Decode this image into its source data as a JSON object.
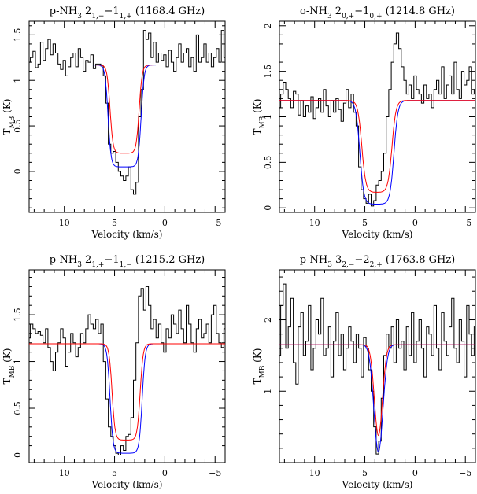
{
  "chart_data": [
    {
      "type": "line",
      "title": {
        "prefix": "p-NH",
        "sub3": "3",
        "mid1": " 2",
        "sub1": "1,−",
        "mid2": "−1",
        "sub2": "1,+",
        "freq": " (1168.4 GHz)"
      },
      "xlabel": "Velocity (km/s)",
      "ylabel": {
        "main": "T",
        "sub": "MB",
        "rest": " (K)"
      },
      "xlim": [
        13.5,
        -6
      ],
      "ylim": [
        -0.45,
        1.65
      ],
      "xticks": [
        "10",
        "5",
        "0",
        "−5"
      ],
      "xtick_values": [
        10,
        5,
        0,
        -5
      ],
      "yticks": [
        "0",
        "0.5",
        "1",
        "1.5"
      ],
      "ytick_values": [
        0,
        0.5,
        1,
        1.5
      ],
      "continuum": 1.17,
      "fit_red": {
        "depth": 0.2,
        "center": 4.0,
        "width": 1.45,
        "sharp": 0.15
      },
      "fit_blue": {
        "depth": 0.05,
        "center": 4.0,
        "width": 1.65,
        "sharp": 0.15
      },
      "observed": {
        "x0": 13.5,
        "dx": 0.25,
        "y": [
          1.2,
          1.25,
          1.32,
          1.14,
          1.18,
          1.42,
          1.22,
          1.35,
          1.45,
          1.28,
          1.4,
          1.3,
          1.18,
          1.12,
          1.22,
          1.05,
          1.15,
          1.25,
          1.3,
          1.15,
          1.35,
          1.25,
          1.1,
          1.22,
          1.2,
          1.28,
          1.13,
          1.18,
          1.18,
          1.16,
          1.05,
          0.75,
          0.3,
          0.2,
          0.22,
          0.1,
          0.0,
          -0.05,
          -0.1,
          -0.05,
          0.05,
          -0.2,
          -0.25,
          -0.12,
          0.6,
          0.9,
          1.55,
          1.45,
          1.52,
          1.25,
          1.42,
          1.2,
          1.3,
          1.22,
          1.28,
          1.15,
          1.33,
          1.2,
          1.1,
          1.25,
          1.4,
          1.2,
          1.3,
          1.35,
          1.15,
          1.25,
          1.1,
          1.5,
          1.2,
          1.25,
          1.4,
          1.2,
          1.3,
          1.15,
          1.25,
          1.35,
          1.2,
          1.55,
          1.25,
          1.1
        ]
      }
    },
    {
      "type": "line",
      "title": {
        "prefix": "o-NH",
        "sub3": "3",
        "mid1": " 2",
        "sub1": "0,+",
        "mid2": "−1",
        "sub2": "0,+",
        "freq": " (1214.8 GHz)"
      },
      "xlabel": "Velocity (km/s)",
      "ylabel": {
        "main": "T",
        "sub": "MB",
        "rest": " (K)"
      },
      "xlim": [
        13.5,
        -6
      ],
      "ylim": [
        -0.05,
        2.05
      ],
      "xticks": [
        "10",
        "5",
        "0",
        "−5"
      ],
      "xtick_values": [
        10,
        5,
        0,
        -5
      ],
      "yticks": [
        "0",
        "0.5",
        "1",
        "1.5",
        "2"
      ],
      "ytick_values": [
        0,
        0.5,
        1,
        1.5,
        2
      ],
      "continuum": 1.18,
      "fit_red": {
        "depth": 0.17,
        "center": 3.8,
        "width": 1.5,
        "sharp": 0.2
      },
      "fit_blue": {
        "depth": 0.04,
        "center": 3.8,
        "width": 1.7,
        "sharp": 0.2
      },
      "observed": {
        "x0": 13.5,
        "dx": 0.25,
        "y": [
          1.1,
          1.25,
          1.38,
          1.3,
          1.2,
          1.1,
          1.28,
          1.25,
          1.02,
          1.18,
          1.0,
          1.12,
          1.05,
          1.22,
          0.98,
          1.1,
          1.2,
          1.05,
          1.3,
          1.12,
          1.0,
          1.18,
          1.05,
          1.2,
          1.08,
          0.95,
          1.15,
          1.3,
          1.1,
          1.25,
          1.05,
          0.9,
          0.45,
          0.2,
          0.1,
          0.05,
          0.15,
          0.02,
          0.08,
          0.25,
          0.3,
          0.4,
          0.6,
          1.0,
          1.3,
          1.6,
          1.8,
          1.92,
          1.75,
          1.55,
          1.4,
          1.25,
          1.35,
          1.2,
          1.45,
          1.3,
          1.25,
          1.15,
          1.35,
          1.2,
          1.25,
          1.1,
          1.3,
          1.4,
          1.25,
          1.55,
          1.2,
          1.35,
          1.45,
          1.25,
          1.6,
          1.3,
          1.2,
          1.5,
          1.35,
          1.4,
          1.55,
          1.25,
          1.3,
          1.05
        ]
      }
    },
    {
      "type": "line",
      "title": {
        "prefix": "p-NH",
        "sub3": "3",
        "mid1": " 2",
        "sub1": "1,+",
        "mid2": "−1",
        "sub2": "1,−",
        "freq": " (1215.2 GHz)"
      },
      "xlabel": "Velocity (km/s)",
      "ylabel": {
        "main": "T",
        "sub": "MB",
        "rest": " (K)"
      },
      "xlim": [
        13.5,
        -6
      ],
      "ylim": [
        -0.08,
        1.98
      ],
      "xticks": [
        "10",
        "5",
        "0",
        "−5"
      ],
      "xtick_values": [
        10,
        5,
        0,
        -5
      ],
      "yticks": [
        "0",
        "0.5",
        "1",
        "1.5"
      ],
      "ytick_values": [
        0,
        0.5,
        1,
        1.5
      ],
      "continuum": 1.19,
      "fit_red": {
        "depth": 0.16,
        "center": 3.85,
        "width": 1.4,
        "sharp": 0.15
      },
      "fit_blue": {
        "depth": 0.02,
        "center": 3.85,
        "width": 1.6,
        "sharp": 0.15
      },
      "observed": {
        "x0": 13.5,
        "dx": 0.25,
        "y": [
          1.25,
          1.4,
          1.35,
          1.3,
          1.32,
          1.28,
          1.2,
          1.35,
          1.15,
          1.0,
          0.9,
          1.1,
          1.2,
          1.35,
          1.25,
          0.95,
          1.1,
          1.3,
          1.2,
          1.05,
          1.15,
          1.3,
          1.2,
          1.35,
          1.5,
          1.4,
          1.35,
          1.45,
          1.3,
          1.4,
          1.0,
          0.6,
          0.3,
          0.2,
          0.1,
          0.02,
          0.0,
          0.1,
          0.05,
          0.2,
          0.22,
          0.4,
          0.8,
          1.2,
          1.7,
          1.78,
          1.55,
          1.8,
          1.6,
          1.35,
          1.45,
          1.25,
          1.4,
          1.2,
          1.1,
          1.35,
          1.25,
          1.5,
          1.4,
          1.3,
          1.55,
          1.35,
          1.2,
          1.6,
          1.4,
          1.2,
          1.1,
          1.35,
          1.45,
          1.25,
          1.3,
          1.4,
          1.2,
          1.5,
          1.6,
          1.3,
          1.2,
          1.15,
          1.35,
          1.2
        ]
      }
    },
    {
      "type": "line",
      "title": {
        "prefix": "p-NH",
        "sub3": "3",
        "mid1": " 3",
        "sub1": "2,−",
        "mid2": "−2",
        "sub2": "2,+",
        "freq": " (1763.8 GHz)"
      },
      "xlabel": "Velocity (km/s)",
      "ylabel": {
        "main": "T",
        "sub": "MB",
        "rest": " (K)"
      },
      "xlim": [
        13.5,
        -6
      ],
      "ylim": [
        0.0,
        2.7
      ],
      "xticks": [
        "10",
        "5",
        "0",
        "−5"
      ],
      "xtick_values": [
        10,
        5,
        0,
        -5
      ],
      "yticks": [
        "1",
        "2"
      ],
      "ytick_values": [
        1,
        2
      ],
      "continuum": 1.65,
      "fit_red": {
        "depth": 0.38,
        "center": 3.65,
        "width": 0.4,
        "sharp": 0.15,
        "shape": "gauss"
      },
      "fit_blue": {
        "depth": 0.15,
        "center": 3.65,
        "width": 0.45,
        "sharp": 0.15,
        "shape": "gauss"
      },
      "observed": {
        "x0": 13.5,
        "dx": 0.25,
        "y": [
          1.5,
          2.2,
          2.5,
          1.6,
          1.9,
          2.3,
          1.4,
          1.1,
          1.9,
          2.1,
          1.5,
          1.7,
          2.2,
          1.3,
          1.6,
          2.0,
          1.8,
          2.3,
          1.5,
          1.6,
          1.9,
          1.2,
          1.7,
          2.1,
          1.5,
          1.8,
          1.3,
          1.6,
          1.9,
          1.7,
          1.4,
          1.8,
          1.6,
          1.2,
          1.75,
          1.6,
          1.3,
          1.0,
          0.5,
          0.12,
          0.3,
          0.9,
          1.5,
          1.8,
          1.6,
          1.9,
          1.4,
          2.0,
          1.6,
          1.7,
          1.3,
          1.9,
          1.5,
          2.1,
          1.4,
          1.7,
          2.0,
          1.6,
          1.2,
          1.9,
          1.8,
          1.5,
          2.2,
          1.6,
          1.3,
          2.1,
          1.7,
          1.5,
          1.9,
          2.3,
          1.6,
          1.4,
          2.0,
          1.7,
          1.2,
          2.2,
          1.8,
          1.5,
          1.9,
          1.6
        ]
      }
    }
  ]
}
